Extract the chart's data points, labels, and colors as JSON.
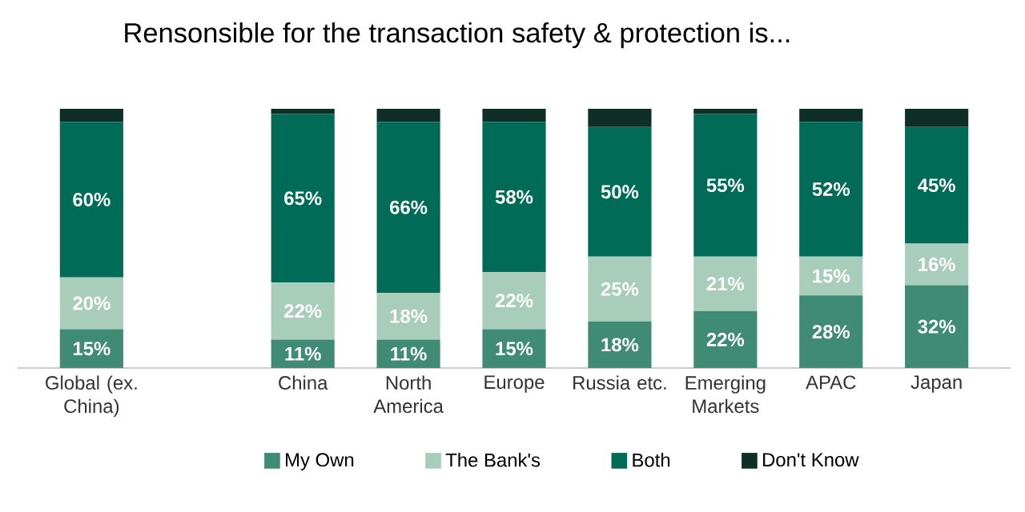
{
  "chart_data": {
    "type": "bar",
    "stacked": true,
    "title": "Rensonsible for the transaction safety & protection is...",
    "categories": [
      "Global (ex. China)",
      null,
      "China",
      "North America",
      "Europe",
      "Russia etc.",
      "Emerging Markets",
      "APAC",
      "Japan"
    ],
    "series": [
      {
        "name": "My Own",
        "color": "#3f8b73",
        "values": [
          15,
          null,
          11,
          11,
          15,
          18,
          22,
          28,
          32
        ],
        "value_labels": [
          "15%",
          null,
          "11%",
          "11%",
          "15%",
          "18%",
          "22%",
          "28%",
          "32%"
        ]
      },
      {
        "name": "The Bank's",
        "color": "#a9cdbb",
        "values": [
          20,
          null,
          22,
          18,
          22,
          25,
          21,
          15,
          16
        ],
        "value_labels": [
          "20%",
          null,
          "22%",
          "18%",
          "22%",
          "25%",
          "21%",
          "15%",
          "16%"
        ]
      },
      {
        "name": "Both",
        "color": "#006b56",
        "values": [
          60,
          null,
          65,
          66,
          58,
          50,
          55,
          52,
          45
        ],
        "value_labels": [
          "60%",
          null,
          "65%",
          "66%",
          "58%",
          "50%",
          "55%",
          "52%",
          "45%"
        ]
      },
      {
        "name": "Don't Know",
        "color": "#0f2e25",
        "values": [
          5,
          null,
          2,
          5,
          5,
          7,
          2,
          5,
          7
        ]
      }
    ],
    "legend": "bottom"
  }
}
